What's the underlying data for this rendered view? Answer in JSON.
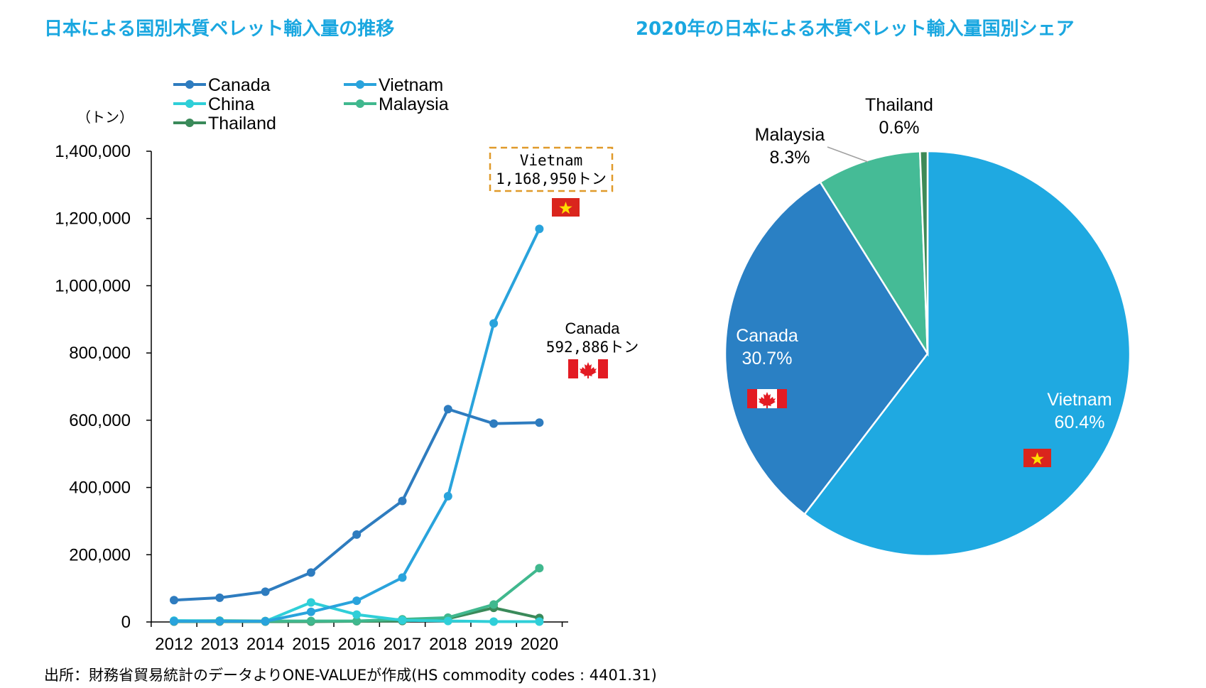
{
  "titles": {
    "left": "日本による国別木質ペレット輸入量の推移",
    "right": "2020年の日本による木質ペレット輸入量国別シェア"
  },
  "source": "出所：財務省貿易統計のデータよりONE-VALUEが作成(HS commodity codes : 4401.31)",
  "chart_data": [
    {
      "type": "line",
      "title": "日本による国別木質ペレット輸入量の推移",
      "ylabel": "（トン）",
      "x": [
        "2012",
        "2013",
        "2014",
        "2015",
        "2016",
        "2017",
        "2018",
        "2019",
        "2020"
      ],
      "ylim": [
        0,
        1400000
      ],
      "yticks": [
        0,
        200000,
        400000,
        600000,
        800000,
        1000000,
        1200000,
        1400000
      ],
      "ytick_labels": [
        "0",
        "200,000",
        "400,000",
        "600,000",
        "800,000",
        "1,000,000",
        "1,200,000",
        "1,400,000"
      ],
      "legend_position": "top",
      "series": [
        {
          "name": "Canada",
          "color": "#2e7cbf",
          "values": [
            65000,
            72000,
            90000,
            147000,
            260000,
            360000,
            633000,
            590000,
            592886
          ]
        },
        {
          "name": "Vietnam",
          "color": "#29a3dc",
          "values": [
            2000,
            2000,
            2000,
            30000,
            63000,
            132000,
            374000,
            888000,
            1168950
          ]
        },
        {
          "name": "China",
          "color": "#2fcfd8",
          "values": [
            4000,
            3000,
            2000,
            58000,
            22000,
            5000,
            3000,
            1000,
            1000
          ]
        },
        {
          "name": "Malaysia",
          "color": "#40b88e",
          "values": [
            3000,
            4000,
            3000,
            3000,
            3000,
            8000,
            13000,
            52000,
            160000
          ]
        },
        {
          "name": "Thailand",
          "color": "#3a8a5a",
          "values": [
            1000,
            1000,
            1000,
            1000,
            2000,
            3000,
            10000,
            42000,
            12000
          ]
        }
      ],
      "annotations": [
        {
          "lines": [
            "Vietnam",
            "1,168,950トン"
          ],
          "flag": "vietnam-flag"
        },
        {
          "lines": [
            "Canada",
            "592,886トン"
          ],
          "flag": "canada-flag"
        }
      ]
    },
    {
      "type": "pie",
      "title": "2020年の日本による木質ペレット輸入量国別シェア",
      "slices": [
        {
          "name": "Vietnam",
          "value": 60.4,
          "label": "60.4%",
          "color": "#1fa9e1",
          "label_color": "#ffffff",
          "flag": "vietnam-flag"
        },
        {
          "name": "Canada",
          "value": 30.7,
          "label": "30.7%",
          "color": "#2a80c4",
          "label_color": "#ffffff",
          "flag": "canada-flag"
        },
        {
          "name": "Malaysia",
          "value": 8.3,
          "label": "8.3%",
          "color": "#45bb96",
          "label_color": "#000000"
        },
        {
          "name": "Thailand",
          "value": 0.6,
          "label": "0.6%",
          "color": "#3e8a57",
          "label_color": "#000000"
        }
      ]
    }
  ]
}
